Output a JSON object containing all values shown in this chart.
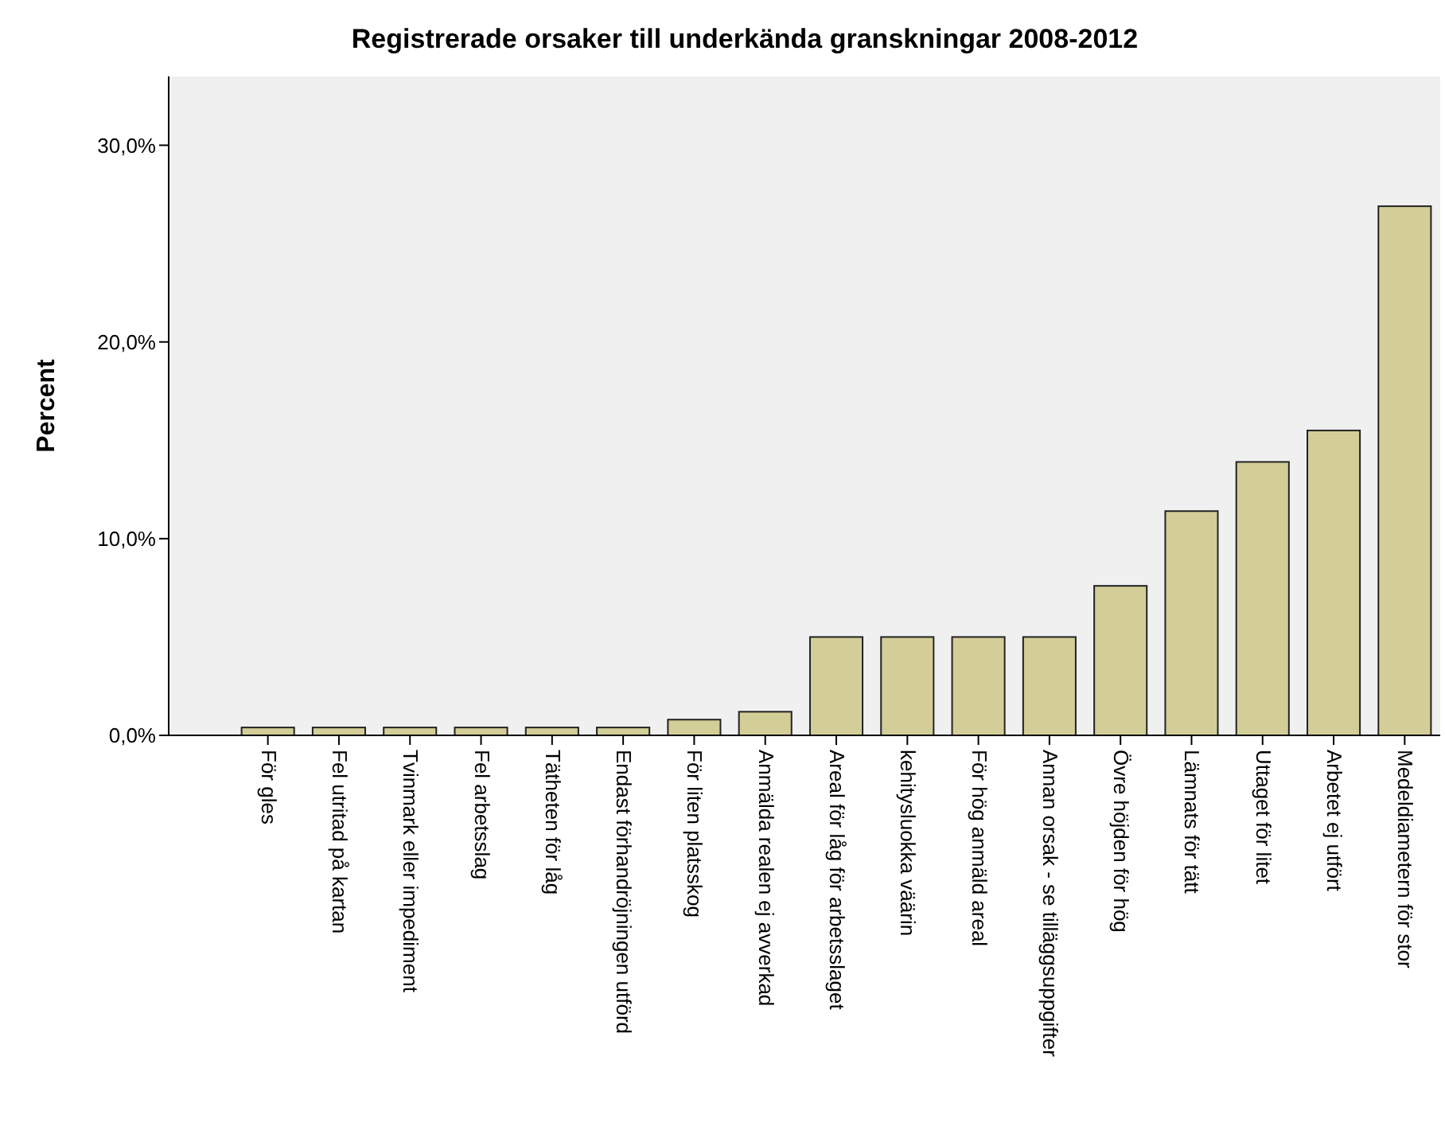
{
  "chart_data": {
    "type": "bar",
    "title": "Registrerade orsaker till underkända granskningar 2008-2012",
    "ylabel": "Percent",
    "categories": [
      "För gles",
      "Fel utritad på kartan",
      "Tvinmark eller impediment",
      "Fel arbetsslag",
      "Tätheten för låg",
      "Endast förhandröjningen utförd",
      "För liten platsskog",
      "Anmälda realen ej avverkad",
      "Areal för låg för arbetsslaget",
      "kehitysluokka väärin",
      "För hög anmäld areal",
      "Annan orsak - se tilläggsuppgifter",
      "Övre höjden för hög",
      "Lämnats för tätt",
      "Uttaget för litet",
      "Arbetet ej utfört",
      "Medeldiametern för stor"
    ],
    "values": [
      0.4,
      0.4,
      0.4,
      0.4,
      0.4,
      0.4,
      0.8,
      1.2,
      5.0,
      5.0,
      5.0,
      5.0,
      7.6,
      11.4,
      13.9,
      15.5,
      26.9
    ],
    "color": "#d3ce97",
    "ylim": [
      0,
      33.5
    ],
    "yticks": [
      {
        "value": 0,
        "label": "0,0%"
      },
      {
        "value": 10,
        "label": "10,0%"
      },
      {
        "value": 20,
        "label": "20,0%"
      },
      {
        "value": 30,
        "label": "30,0%"
      }
    ]
  }
}
